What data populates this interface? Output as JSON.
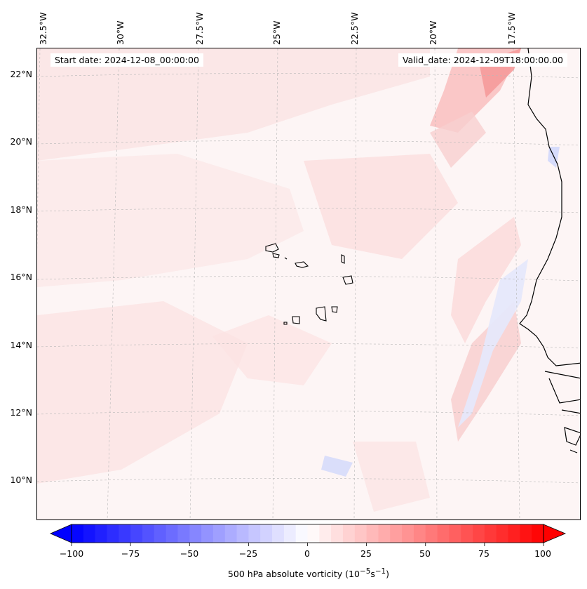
{
  "map": {
    "start_label": "Start date: 2024-12-08_00:00:00",
    "valid_label": "Valid_date: 2024-12-09T18:00:00.00",
    "lon_labels": [
      "32.5°W",
      "30°W",
      "27.5°W",
      "25°W",
      "22.5°W",
      "20°W",
      "17.5°W"
    ],
    "lat_labels": [
      "22°N",
      "20°N",
      "18°N",
      "16°N",
      "14°N",
      "12°N",
      "10°N"
    ],
    "field": "500 hPa absolute vorticity",
    "colormap": "bwr",
    "colors": {
      "coast": "#000000",
      "grid": "#b0b0b0",
      "background": "#fdf5f5"
    }
  },
  "colorbar": {
    "label_prefix": "500 hPa absolute vorticity (10",
    "label_exp1": "−5",
    "label_mid": "s",
    "label_exp2": "−1",
    "label_suffix": ")",
    "ticks": [
      "−100",
      "−75",
      "−50",
      "−25",
      "0",
      "25",
      "50",
      "75",
      "100"
    ],
    "range": [
      -100,
      100
    ],
    "extend": "both"
  }
}
